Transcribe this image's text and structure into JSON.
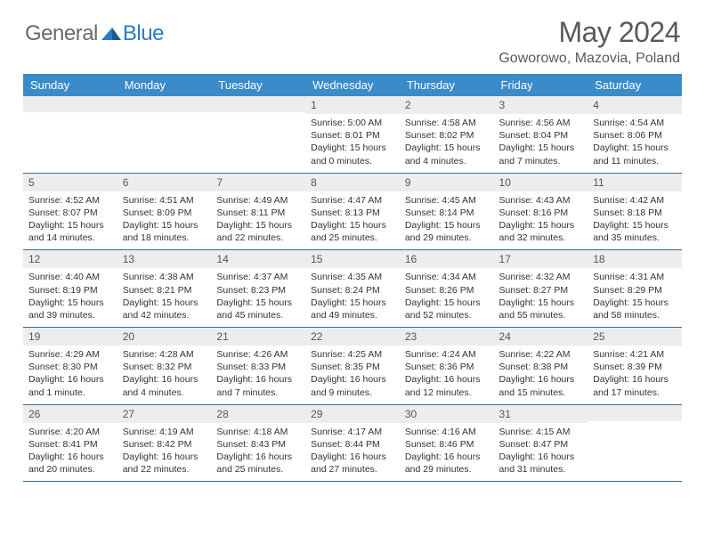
{
  "logo": {
    "general": "General",
    "blue": "Blue"
  },
  "header": {
    "month": "May 2024",
    "location": "Goworowo, Mazovia, Poland"
  },
  "colors": {
    "header_bg": "#3b8bc9",
    "header_text": "#ffffff",
    "daynum_bg": "#ededed",
    "daynum_text": "#555555",
    "border": "#3b6a95",
    "title_text": "#595959",
    "logo_gray": "#6a6a6a",
    "logo_blue": "#2d7bbf"
  },
  "weekdays": [
    "Sunday",
    "Monday",
    "Tuesday",
    "Wednesday",
    "Thursday",
    "Friday",
    "Saturday"
  ],
  "weeks": [
    [
      {
        "n": "",
        "sr": "",
        "ss": "",
        "dl": ""
      },
      {
        "n": "",
        "sr": "",
        "ss": "",
        "dl": ""
      },
      {
        "n": "",
        "sr": "",
        "ss": "",
        "dl": ""
      },
      {
        "n": "1",
        "sr": "Sunrise: 5:00 AM",
        "ss": "Sunset: 8:01 PM",
        "dl": "Daylight: 15 hours and 0 minutes."
      },
      {
        "n": "2",
        "sr": "Sunrise: 4:58 AM",
        "ss": "Sunset: 8:02 PM",
        "dl": "Daylight: 15 hours and 4 minutes."
      },
      {
        "n": "3",
        "sr": "Sunrise: 4:56 AM",
        "ss": "Sunset: 8:04 PM",
        "dl": "Daylight: 15 hours and 7 minutes."
      },
      {
        "n": "4",
        "sr": "Sunrise: 4:54 AM",
        "ss": "Sunset: 8:06 PM",
        "dl": "Daylight: 15 hours and 11 minutes."
      }
    ],
    [
      {
        "n": "5",
        "sr": "Sunrise: 4:52 AM",
        "ss": "Sunset: 8:07 PM",
        "dl": "Daylight: 15 hours and 14 minutes."
      },
      {
        "n": "6",
        "sr": "Sunrise: 4:51 AM",
        "ss": "Sunset: 8:09 PM",
        "dl": "Daylight: 15 hours and 18 minutes."
      },
      {
        "n": "7",
        "sr": "Sunrise: 4:49 AM",
        "ss": "Sunset: 8:11 PM",
        "dl": "Daylight: 15 hours and 22 minutes."
      },
      {
        "n": "8",
        "sr": "Sunrise: 4:47 AM",
        "ss": "Sunset: 8:13 PM",
        "dl": "Daylight: 15 hours and 25 minutes."
      },
      {
        "n": "9",
        "sr": "Sunrise: 4:45 AM",
        "ss": "Sunset: 8:14 PM",
        "dl": "Daylight: 15 hours and 29 minutes."
      },
      {
        "n": "10",
        "sr": "Sunrise: 4:43 AM",
        "ss": "Sunset: 8:16 PM",
        "dl": "Daylight: 15 hours and 32 minutes."
      },
      {
        "n": "11",
        "sr": "Sunrise: 4:42 AM",
        "ss": "Sunset: 8:18 PM",
        "dl": "Daylight: 15 hours and 35 minutes."
      }
    ],
    [
      {
        "n": "12",
        "sr": "Sunrise: 4:40 AM",
        "ss": "Sunset: 8:19 PM",
        "dl": "Daylight: 15 hours and 39 minutes."
      },
      {
        "n": "13",
        "sr": "Sunrise: 4:38 AM",
        "ss": "Sunset: 8:21 PM",
        "dl": "Daylight: 15 hours and 42 minutes."
      },
      {
        "n": "14",
        "sr": "Sunrise: 4:37 AM",
        "ss": "Sunset: 8:23 PM",
        "dl": "Daylight: 15 hours and 45 minutes."
      },
      {
        "n": "15",
        "sr": "Sunrise: 4:35 AM",
        "ss": "Sunset: 8:24 PM",
        "dl": "Daylight: 15 hours and 49 minutes."
      },
      {
        "n": "16",
        "sr": "Sunrise: 4:34 AM",
        "ss": "Sunset: 8:26 PM",
        "dl": "Daylight: 15 hours and 52 minutes."
      },
      {
        "n": "17",
        "sr": "Sunrise: 4:32 AM",
        "ss": "Sunset: 8:27 PM",
        "dl": "Daylight: 15 hours and 55 minutes."
      },
      {
        "n": "18",
        "sr": "Sunrise: 4:31 AM",
        "ss": "Sunset: 8:29 PM",
        "dl": "Daylight: 15 hours and 58 minutes."
      }
    ],
    [
      {
        "n": "19",
        "sr": "Sunrise: 4:29 AM",
        "ss": "Sunset: 8:30 PM",
        "dl": "Daylight: 16 hours and 1 minute."
      },
      {
        "n": "20",
        "sr": "Sunrise: 4:28 AM",
        "ss": "Sunset: 8:32 PM",
        "dl": "Daylight: 16 hours and 4 minutes."
      },
      {
        "n": "21",
        "sr": "Sunrise: 4:26 AM",
        "ss": "Sunset: 8:33 PM",
        "dl": "Daylight: 16 hours and 7 minutes."
      },
      {
        "n": "22",
        "sr": "Sunrise: 4:25 AM",
        "ss": "Sunset: 8:35 PM",
        "dl": "Daylight: 16 hours and 9 minutes."
      },
      {
        "n": "23",
        "sr": "Sunrise: 4:24 AM",
        "ss": "Sunset: 8:36 PM",
        "dl": "Daylight: 16 hours and 12 minutes."
      },
      {
        "n": "24",
        "sr": "Sunrise: 4:22 AM",
        "ss": "Sunset: 8:38 PM",
        "dl": "Daylight: 16 hours and 15 minutes."
      },
      {
        "n": "25",
        "sr": "Sunrise: 4:21 AM",
        "ss": "Sunset: 8:39 PM",
        "dl": "Daylight: 16 hours and 17 minutes."
      }
    ],
    [
      {
        "n": "26",
        "sr": "Sunrise: 4:20 AM",
        "ss": "Sunset: 8:41 PM",
        "dl": "Daylight: 16 hours and 20 minutes."
      },
      {
        "n": "27",
        "sr": "Sunrise: 4:19 AM",
        "ss": "Sunset: 8:42 PM",
        "dl": "Daylight: 16 hours and 22 minutes."
      },
      {
        "n": "28",
        "sr": "Sunrise: 4:18 AM",
        "ss": "Sunset: 8:43 PM",
        "dl": "Daylight: 16 hours and 25 minutes."
      },
      {
        "n": "29",
        "sr": "Sunrise: 4:17 AM",
        "ss": "Sunset: 8:44 PM",
        "dl": "Daylight: 16 hours and 27 minutes."
      },
      {
        "n": "30",
        "sr": "Sunrise: 4:16 AM",
        "ss": "Sunset: 8:46 PM",
        "dl": "Daylight: 16 hours and 29 minutes."
      },
      {
        "n": "31",
        "sr": "Sunrise: 4:15 AM",
        "ss": "Sunset: 8:47 PM",
        "dl": "Daylight: 16 hours and 31 minutes."
      },
      {
        "n": "",
        "sr": "",
        "ss": "",
        "dl": ""
      }
    ]
  ]
}
